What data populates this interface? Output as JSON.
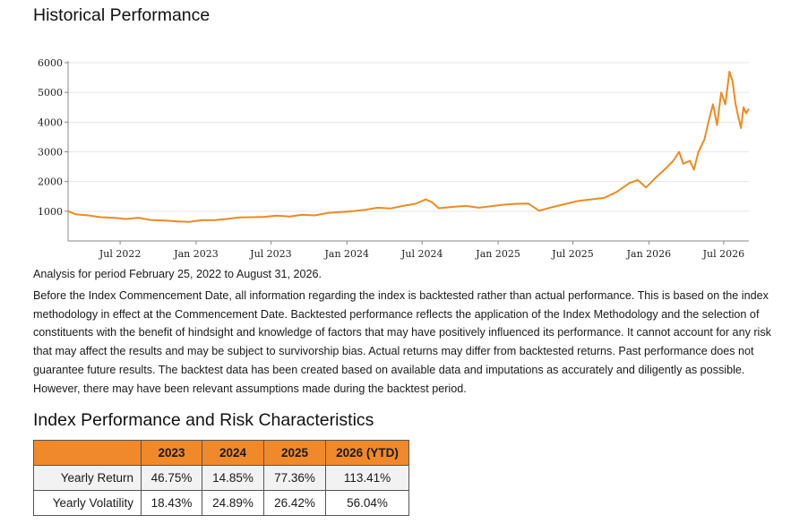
{
  "performance_title": "Historical Performance",
  "risk_title": "Index Performance and Risk Characteristics",
  "analysis_period": "Analysis for period February 25, 2022 to August 31, 2026.",
  "disclaimer": "Before the Index Commencement Date, all information regarding the index is backtested rather than actual performance. This is based on the index methodology in effect at the Commencement Date. Backtested performance reflects the application of the Index Methodology and the selection of constituents with the benefit of hindsight and knowledge of factors that may have positively influenced its performance. It cannot account for any risk that may affect the results and may be subject to survivorship bias. Actual returns may differ from backtested returns. Past performance does not guarantee future results. The backtest data has been created based on available data and imputations as accurately and diligently as possible. However, there may have been relevant assumptions made during the backtest period.",
  "chart_data": {
    "type": "line",
    "title": "Historical Performance",
    "xlabel": "",
    "ylabel": "",
    "ylim": [
      0,
      6000
    ],
    "y_ticks": [
      "1000",
      "2000",
      "3000",
      "4000",
      "5000",
      "6000"
    ],
    "x_ticks": [
      "Jul 2022",
      "Jan 2023",
      "Jul 2023",
      "Jan 2024",
      "Jul 2024",
      "Jan 2025",
      "Jul 2025",
      "Jan 2026",
      "Jul 2026"
    ],
    "x_range": [
      "2022-02-25",
      "2026-08-31"
    ],
    "grid": "horizontal",
    "line_color": "#ef8a1f",
    "series": [
      {
        "points": [
          [
            "2022-02-25",
            1000
          ],
          [
            "2022-03-15",
            900
          ],
          [
            "2022-04-15",
            860
          ],
          [
            "2022-05-15",
            800
          ],
          [
            "2022-06-15",
            780
          ],
          [
            "2022-07-15",
            740
          ],
          [
            "2022-08-15",
            780
          ],
          [
            "2022-09-15",
            700
          ],
          [
            "2022-10-15",
            690
          ],
          [
            "2022-11-15",
            660
          ],
          [
            "2022-12-15",
            640
          ],
          [
            "2023-01-15",
            700
          ],
          [
            "2023-02-15",
            700
          ],
          [
            "2023-03-15",
            740
          ],
          [
            "2023-04-15",
            790
          ],
          [
            "2023-05-15",
            800
          ],
          [
            "2023-06-15",
            810
          ],
          [
            "2023-07-15",
            850
          ],
          [
            "2023-08-15",
            820
          ],
          [
            "2023-09-15",
            880
          ],
          [
            "2023-10-15",
            860
          ],
          [
            "2023-11-15",
            940
          ],
          [
            "2023-12-15",
            970
          ],
          [
            "2024-01-15",
            1000
          ],
          [
            "2024-02-15",
            1050
          ],
          [
            "2024-03-15",
            1120
          ],
          [
            "2024-04-15",
            1090
          ],
          [
            "2024-05-15",
            1180
          ],
          [
            "2024-06-15",
            1250
          ],
          [
            "2024-07-10",
            1400
          ],
          [
            "2024-07-25",
            1300
          ],
          [
            "2024-08-10",
            1100
          ],
          [
            "2024-09-15",
            1150
          ],
          [
            "2024-10-15",
            1180
          ],
          [
            "2024-11-15",
            1120
          ],
          [
            "2024-12-15",
            1170
          ],
          [
            "2025-01-15",
            1220
          ],
          [
            "2025-02-15",
            1250
          ],
          [
            "2025-03-15",
            1260
          ],
          [
            "2025-04-10",
            1020
          ],
          [
            "2025-05-15",
            1150
          ],
          [
            "2025-06-15",
            1250
          ],
          [
            "2025-07-15",
            1350
          ],
          [
            "2025-08-15",
            1400
          ],
          [
            "2025-09-15",
            1450
          ],
          [
            "2025-10-15",
            1650
          ],
          [
            "2025-11-15",
            1950
          ],
          [
            "2025-12-05",
            2050
          ],
          [
            "2025-12-25",
            1800
          ],
          [
            "2026-01-15",
            2100
          ],
          [
            "2026-02-15",
            2500
          ],
          [
            "2026-03-01",
            2700
          ],
          [
            "2026-03-15",
            3000
          ],
          [
            "2026-03-25",
            2600
          ],
          [
            "2026-04-10",
            2700
          ],
          [
            "2026-04-20",
            2400
          ],
          [
            "2026-05-01",
            3000
          ],
          [
            "2026-05-15",
            3400
          ],
          [
            "2026-05-25",
            4000
          ],
          [
            "2026-06-05",
            4600
          ],
          [
            "2026-06-15",
            3900
          ],
          [
            "2026-06-25",
            5000
          ],
          [
            "2026-07-05",
            4600
          ],
          [
            "2026-07-15",
            5700
          ],
          [
            "2026-07-22",
            5400
          ],
          [
            "2026-07-30",
            4600
          ],
          [
            "2026-08-05",
            4200
          ],
          [
            "2026-08-12",
            3800
          ],
          [
            "2026-08-18",
            4500
          ],
          [
            "2026-08-24",
            4300
          ],
          [
            "2026-08-31",
            4450
          ]
        ]
      }
    ]
  },
  "table": {
    "headers": [
      "",
      "2023",
      "2024",
      "2025",
      "2026 (YTD)"
    ],
    "rows": [
      {
        "label": "Yearly Return",
        "values": [
          "46.75%",
          "14.85%",
          "77.36%",
          "113.41%"
        ]
      },
      {
        "label": "Yearly Volatility",
        "values": [
          "18.43%",
          "24.89%",
          "26.42%",
          "56.04%"
        ]
      }
    ]
  }
}
